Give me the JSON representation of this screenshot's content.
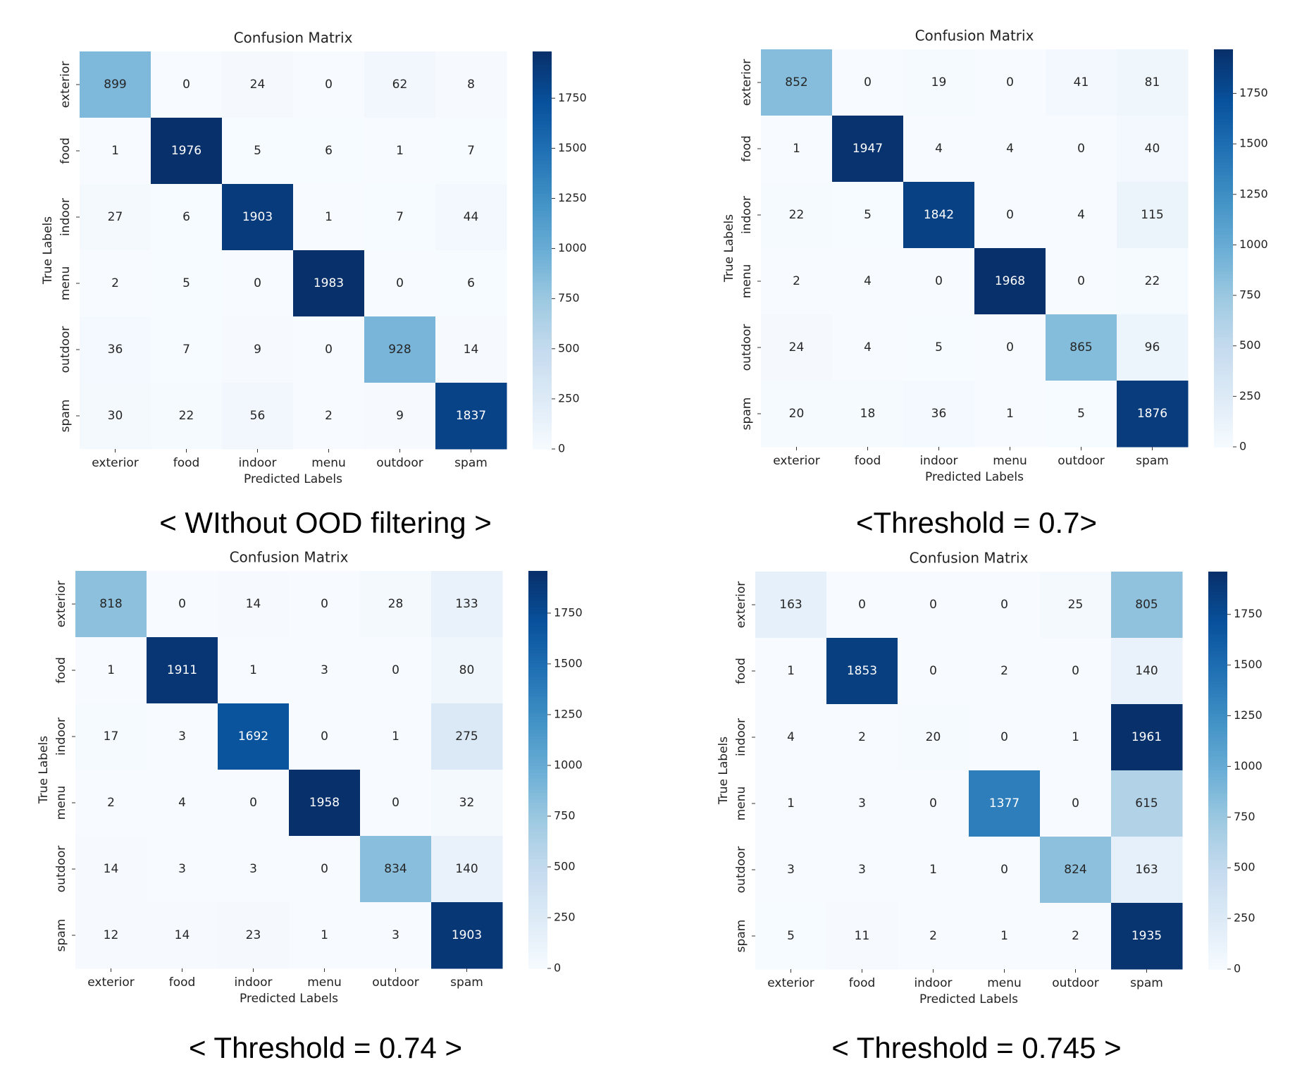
{
  "chart_data": [
    {
      "type": "heatmap",
      "title": "Confusion Matrix",
      "caption": "< WIthout OOD filtering >",
      "xlabel": "Predicted Labels",
      "ylabel": "True Labels",
      "categories": [
        "exterior",
        "food",
        "indoor",
        "menu",
        "outdoor",
        "spam"
      ],
      "matrix": [
        [
          899,
          0,
          24,
          0,
          62,
          8
        ],
        [
          1,
          1976,
          5,
          6,
          1,
          7
        ],
        [
          27,
          6,
          1903,
          1,
          7,
          44
        ],
        [
          2,
          5,
          0,
          1983,
          0,
          6
        ],
        [
          36,
          7,
          9,
          0,
          928,
          14
        ],
        [
          30,
          22,
          56,
          2,
          9,
          1837
        ]
      ],
      "colorbar_ticks": [
        "0",
        "250",
        "500",
        "750",
        "1000",
        "1250",
        "1500",
        "1750"
      ],
      "colorbar_max": 1983,
      "colormap": "Blues",
      "grid": false
    },
    {
      "type": "heatmap",
      "title": "Confusion Matrix",
      "caption": "<Threshold = 0.7>",
      "xlabel": "Predicted Labels",
      "ylabel": "True Labels",
      "categories": [
        "exterior",
        "food",
        "indoor",
        "menu",
        "outdoor",
        "spam"
      ],
      "matrix": [
        [
          852,
          0,
          19,
          0,
          41,
          81
        ],
        [
          1,
          1947,
          4,
          4,
          0,
          40
        ],
        [
          22,
          5,
          1842,
          0,
          4,
          115
        ],
        [
          2,
          4,
          0,
          1968,
          0,
          22
        ],
        [
          24,
          4,
          5,
          0,
          865,
          96
        ],
        [
          20,
          18,
          36,
          1,
          5,
          1876
        ]
      ],
      "colorbar_ticks": [
        "0",
        "250",
        "500",
        "750",
        "1000",
        "1250",
        "1500",
        "1750"
      ],
      "colorbar_max": 1968,
      "colormap": "Blues",
      "grid": false
    },
    {
      "type": "heatmap",
      "title": "Confusion Matrix",
      "caption": "< Threshold = 0.74 >",
      "xlabel": "Predicted Labels",
      "ylabel": "True Labels",
      "categories": [
        "exterior",
        "food",
        "indoor",
        "menu",
        "outdoor",
        "spam"
      ],
      "matrix": [
        [
          818,
          0,
          14,
          0,
          28,
          133
        ],
        [
          1,
          1911,
          1,
          3,
          0,
          80
        ],
        [
          17,
          3,
          1692,
          0,
          1,
          275
        ],
        [
          2,
          4,
          0,
          1958,
          0,
          32
        ],
        [
          14,
          3,
          3,
          0,
          834,
          140
        ],
        [
          12,
          14,
          23,
          1,
          3,
          1903
        ]
      ],
      "colorbar_ticks": [
        "0",
        "250",
        "500",
        "750",
        "1000",
        "1250",
        "1500",
        "1750"
      ],
      "colorbar_max": 1958,
      "colormap": "Blues",
      "grid": false
    },
    {
      "type": "heatmap",
      "title": "Confusion Matrix",
      "caption": "< Threshold = 0.745 >",
      "xlabel": "Predicted Labels",
      "ylabel": "True Labels",
      "categories": [
        "exterior",
        "food",
        "indoor",
        "menu",
        "outdoor",
        "spam"
      ],
      "matrix": [
        [
          163,
          0,
          0,
          0,
          25,
          805
        ],
        [
          1,
          1853,
          0,
          2,
          0,
          140
        ],
        [
          4,
          2,
          20,
          0,
          1,
          1961
        ],
        [
          1,
          3,
          0,
          1377,
          0,
          615
        ],
        [
          3,
          3,
          1,
          0,
          824,
          163
        ],
        [
          5,
          11,
          2,
          1,
          2,
          1935
        ]
      ],
      "colorbar_ticks": [
        "0",
        "250",
        "500",
        "750",
        "1000",
        "1250",
        "1500",
        "1750"
      ],
      "colorbar_max": 1961,
      "colormap": "Blues",
      "grid": false
    }
  ]
}
